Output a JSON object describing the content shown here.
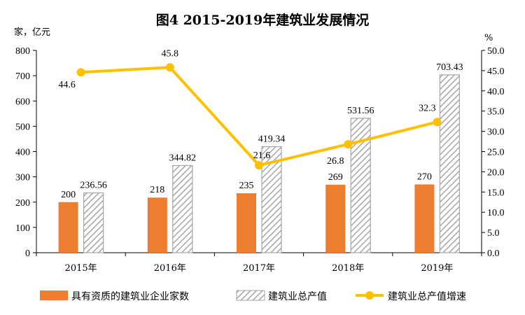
{
  "chart_data": {
    "type": "bar+line",
    "title": "图4   2015-2019年建筑业发展情况",
    "y_left_unit": "家，亿元",
    "y_right_unit": "%",
    "categories": [
      "2015年",
      "2016年",
      "2017年",
      "2018年",
      "2019年"
    ],
    "ylim_left": [
      0,
      800
    ],
    "yticks_left": [
      "0",
      "100",
      "200",
      "300",
      "400",
      "500",
      "600",
      "700",
      "800"
    ],
    "ylim_right": [
      0,
      50
    ],
    "yticks_right": [
      "0.0",
      "5.0",
      "10.0",
      "15.0",
      "20.0",
      "25.0",
      "30.0",
      "35.0",
      "40.0",
      "45.0",
      "50.0"
    ],
    "series": [
      {
        "name": "具有资质的建筑业企业家数",
        "type": "bar",
        "axis": "left",
        "color": "#ED7D31",
        "values": [
          200,
          218,
          235,
          269,
          270
        ],
        "labels": [
          "200",
          "218",
          "235",
          "269",
          "270"
        ]
      },
      {
        "name": "建筑业总产值",
        "type": "bar",
        "axis": "left",
        "pattern": "diagonal-hatch",
        "color": "#A6A6A6",
        "values": [
          236.56,
          344.82,
          419.34,
          531.56,
          703.43
        ],
        "labels": [
          "236.56",
          "344.82",
          "419.34",
          "531.56",
          "703.43"
        ]
      },
      {
        "name": "建筑业总产值增速",
        "type": "line",
        "axis": "right",
        "color": "#FFC000",
        "values": [
          44.6,
          45.8,
          21.6,
          26.8,
          32.3
        ],
        "labels": [
          "44.6",
          "45.8",
          "21.6",
          "26.8",
          "32.3"
        ]
      }
    ],
    "legend_position": "bottom",
    "grid": false
  }
}
